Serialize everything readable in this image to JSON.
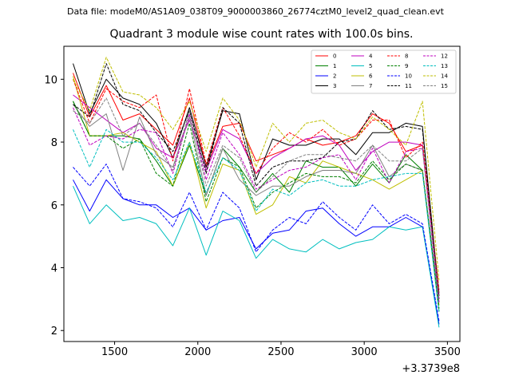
{
  "figure": {
    "suptitle": "Data file: modeM0/AS1A09_038T09_9000003860_26774cztM0_level2_quad_clean.evt",
    "title": "Quadrant 3 module wise count rates with 100.0s bins."
  },
  "chart_data": {
    "type": "line",
    "title": "Quadrant 3 module wise count rates with 100.0s bins.",
    "xlabel": "",
    "ylabel": "",
    "x_offset_label": "+3.3739e8",
    "xlim": [
      1195,
      3575
    ],
    "ylim": [
      1.65,
      11.05
    ],
    "xticks": [
      1500,
      2000,
      2500,
      3000,
      3500
    ],
    "yticks": [
      2,
      4,
      6,
      8,
      10
    ],
    "grid": false,
    "legend_position": "top-right",
    "x": [
      1250,
      1350,
      1450,
      1550,
      1650,
      1750,
      1850,
      1950,
      2050,
      2150,
      2250,
      2350,
      2450,
      2550,
      2650,
      2750,
      2850,
      2950,
      3050,
      3150,
      3250,
      3350,
      3450
    ],
    "series": [
      {
        "name": "0",
        "color": "#ff0000",
        "dash": "solid",
        "values": [
          10.2,
          8.8,
          9.8,
          8.7,
          8.9,
          8.4,
          7.9,
          9.4,
          7.2,
          8.5,
          8.6,
          7.4,
          7.6,
          7.8,
          8.1,
          7.9,
          8.0,
          8.2,
          8.9,
          8.6,
          7.7,
          7.9,
          3.2
        ]
      },
      {
        "name": "1",
        "color": "#008000",
        "dash": "solid",
        "values": [
          9.3,
          8.2,
          8.2,
          8.2,
          8.1,
          7.4,
          6.6,
          7.9,
          6.3,
          7.8,
          7.2,
          6.4,
          7.0,
          6.4,
          7.4,
          7.2,
          7.2,
          6.6,
          7.3,
          6.7,
          7.6,
          7.1,
          2.6
        ]
      },
      {
        "name": "2",
        "color": "#0000ff",
        "dash": "solid",
        "values": [
          6.8,
          5.8,
          6.8,
          6.2,
          6.0,
          6.0,
          5.6,
          5.9,
          5.2,
          5.5,
          5.6,
          4.6,
          5.1,
          5.2,
          5.8,
          5.9,
          5.4,
          5.0,
          5.3,
          5.3,
          5.6,
          5.3,
          2.2
        ]
      },
      {
        "name": "3",
        "color": "#000000",
        "dash": "solid",
        "values": [
          10.5,
          8.9,
          10.0,
          9.4,
          9.2,
          8.6,
          7.5,
          9.1,
          7.2,
          9.0,
          8.9,
          6.8,
          8.1,
          7.9,
          7.9,
          8.1,
          8.1,
          7.6,
          8.3,
          8.3,
          8.6,
          8.5,
          3.1
        ]
      },
      {
        "name": "4",
        "color": "#bf00bf",
        "dash": "solid",
        "values": [
          9.5,
          9.1,
          8.7,
          8.3,
          8.6,
          7.8,
          7.5,
          8.7,
          7.1,
          8.4,
          8.1,
          7.0,
          7.5,
          7.8,
          8.1,
          8.2,
          7.9,
          7.1,
          7.7,
          8.0,
          8.0,
          7.9,
          3.0
        ]
      },
      {
        "name": "5",
        "color": "#00bfbf",
        "dash": "solid",
        "values": [
          6.6,
          5.4,
          6.0,
          5.5,
          5.6,
          5.4,
          4.7,
          5.9,
          4.4,
          5.8,
          5.5,
          4.3,
          4.9,
          4.6,
          4.5,
          4.9,
          4.6,
          4.8,
          4.9,
          5.3,
          5.2,
          5.3,
          2.1
        ]
      },
      {
        "name": "6",
        "color": "#bfbf00",
        "dash": "solid",
        "values": [
          10.1,
          8.2,
          8.2,
          8.3,
          8.0,
          7.7,
          6.6,
          8.0,
          5.9,
          7.3,
          7.1,
          5.7,
          6.0,
          6.9,
          6.7,
          7.4,
          7.2,
          7.0,
          6.8,
          6.5,
          6.8,
          7.1,
          2.8
        ]
      },
      {
        "name": "7",
        "color": "#808080",
        "dash": "solid",
        "values": [
          9.2,
          8.5,
          8.9,
          7.1,
          8.8,
          7.6,
          7.2,
          8.8,
          6.3,
          7.8,
          6.8,
          6.3,
          6.6,
          6.6,
          6.9,
          7.1,
          7.1,
          7.0,
          7.9,
          6.9,
          7.3,
          7.1,
          2.9
        ]
      },
      {
        "name": "8",
        "color": "#ff0000",
        "dash": "dashed",
        "values": [
          10.0,
          8.6,
          9.7,
          9.3,
          9.1,
          9.5,
          7.4,
          9.7,
          7.3,
          9.1,
          8.2,
          7.0,
          7.8,
          8.3,
          8.0,
          8.4,
          7.9,
          8.1,
          8.7,
          8.7,
          7.5,
          8.0,
          3.3
        ]
      },
      {
        "name": "9",
        "color": "#008000",
        "dash": "dashed",
        "values": [
          9.3,
          8.2,
          8.2,
          7.8,
          8.1,
          7.0,
          6.6,
          8.6,
          6.1,
          7.5,
          7.2,
          5.9,
          6.4,
          6.7,
          7.0,
          6.9,
          6.9,
          6.7,
          7.4,
          6.8,
          7.3,
          7.1,
          2.7
        ]
      },
      {
        "name": "10",
        "color": "#0000ff",
        "dash": "dashed",
        "values": [
          7.2,
          6.6,
          7.3,
          6.2,
          6.1,
          5.9,
          5.3,
          6.4,
          5.2,
          6.4,
          5.9,
          4.5,
          5.2,
          5.6,
          5.4,
          6.1,
          5.6,
          5.2,
          6.0,
          5.4,
          5.7,
          5.4,
          2.3
        ]
      },
      {
        "name": "11",
        "color": "#000000",
        "dash": "dashed",
        "values": [
          9.2,
          8.8,
          10.5,
          9.2,
          9.0,
          8.3,
          7.7,
          9.0,
          7.0,
          9.1,
          8.6,
          6.6,
          7.2,
          7.4,
          7.4,
          7.5,
          8.0,
          8.1,
          9.0,
          8.4,
          8.5,
          8.4,
          3.0
        ]
      },
      {
        "name": "12",
        "color": "#bf00bf",
        "dash": "dashed",
        "values": [
          9.1,
          7.9,
          8.2,
          8.1,
          8.4,
          8.3,
          7.0,
          8.9,
          6.8,
          8.3,
          7.6,
          6.5,
          6.8,
          7.1,
          7.2,
          7.5,
          7.6,
          6.8,
          7.8,
          6.7,
          7.7,
          7.8,
          2.9
        ]
      },
      {
        "name": "13",
        "color": "#00bfbf",
        "dash": "dashed",
        "values": [
          8.4,
          7.2,
          8.4,
          8.0,
          8.0,
          7.5,
          6.8,
          8.0,
          6.4,
          7.5,
          7.1,
          5.8,
          6.5,
          6.3,
          6.7,
          6.8,
          6.6,
          6.6,
          6.8,
          6.9,
          7.0,
          7.0,
          2.6
        ]
      },
      {
        "name": "14",
        "color": "#bfbf00",
        "dash": "dashed",
        "values": [
          10.0,
          9.0,
          10.7,
          9.6,
          9.5,
          9.1,
          8.4,
          9.3,
          7.7,
          9.4,
          8.7,
          7.2,
          8.6,
          8.0,
          8.6,
          8.7,
          8.3,
          8.1,
          8.8,
          8.4,
          7.9,
          9.3,
          3.6
        ]
      },
      {
        "name": "15",
        "color": "#808080",
        "dash": "dashed",
        "values": [
          9.0,
          8.6,
          9.4,
          8.2,
          8.6,
          7.9,
          7.1,
          9.0,
          6.6,
          7.9,
          7.5,
          6.4,
          6.9,
          7.4,
          7.6,
          7.6,
          7.5,
          7.4,
          7.9,
          7.4,
          7.4,
          7.8,
          3.0
        ]
      }
    ]
  }
}
